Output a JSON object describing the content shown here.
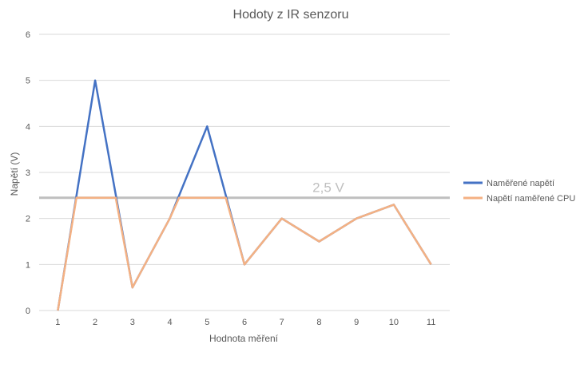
{
  "chart_data": {
    "type": "line",
    "title": "Hodoty z IR senzoru",
    "xlabel": "Hodnota měření",
    "ylabel": "Napětí (V)",
    "categories": [
      "1",
      "2",
      "3",
      "4",
      "5",
      "6",
      "7",
      "8",
      "9",
      "10",
      "11"
    ],
    "ylim": [
      0,
      6
    ],
    "yticks": [
      "0",
      "1",
      "2",
      "3",
      "4",
      "5",
      "6"
    ],
    "grid": true,
    "legend_position": "right",
    "series": [
      {
        "name": "Naměřené napětí",
        "color": "#4472C4",
        "values": [
          0,
          5,
          0.5,
          2,
          4,
          1,
          2,
          1.5,
          2,
          2.3,
          1
        ]
      },
      {
        "name": "Napětí naměřené CPU",
        "color": "#F4B183",
        "values": [
          0,
          2.45,
          2.45,
          0.5,
          2,
          2.45,
          2.45,
          1,
          2,
          1.5,
          2,
          2.3,
          1
        ],
        "x": [
          1,
          1.5,
          2.55,
          3,
          4,
          4.25,
          5.5,
          6,
          7,
          8,
          9,
          10,
          11
        ]
      }
    ],
    "reference_line": {
      "value": 2.45,
      "label": "2,5 V",
      "color": "#BFBFBF"
    }
  }
}
